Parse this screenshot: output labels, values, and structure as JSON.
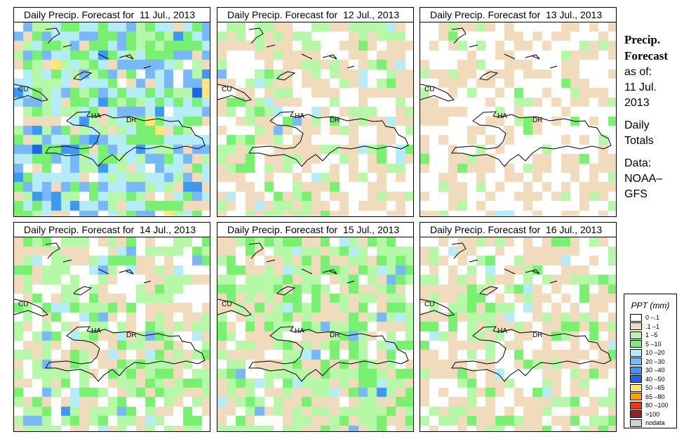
{
  "panels": [
    {
      "title": "Daily Precip. Forecast for  11 Jul., 2013"
    },
    {
      "title": "Daily Precip. Forecast for  12 Jul., 2013"
    },
    {
      "title": "Daily Precip. Forecast for  13 Jul., 2013"
    },
    {
      "title": "Daily Precip. Forecast for  14 Jul., 2013"
    },
    {
      "title": "Daily Precip. Forecast for  15 Jul., 2013"
    },
    {
      "title": "Daily Precip. Forecast for  16 Jul., 2013"
    }
  ],
  "map_labels": {
    "cuba": "CU",
    "haiti": "HA",
    "dr": "DR"
  },
  "side": {
    "title1": "Precip.",
    "title2": "Forecast",
    "asof": "as of:",
    "date1": "11 Jul.",
    "date2": "2013",
    "daily": "Daily",
    "totals": "Totals",
    "data": "Data:",
    "src1": "NOAA–",
    "src2": "GFS"
  },
  "legend": {
    "title": "PPT (mm)",
    "items": [
      {
        "label": "0 –.1",
        "color": "#ffffff"
      },
      {
        "label": ".1 –1",
        "color": "#f0dcbc"
      },
      {
        "label": "1 –5",
        "color": "#b4f8a8"
      },
      {
        "label": "5 –10",
        "color": "#78f070"
      },
      {
        "label": "10 –20",
        "color": "#b4ecf8"
      },
      {
        "label": "20 –30",
        "color": "#78b8f8"
      },
      {
        "label": "30 –40",
        "color": "#3c98f0"
      },
      {
        "label": "40 –50",
        "color": "#1e64e6"
      },
      {
        "label": "50 –65",
        "color": "#ffe678"
      },
      {
        "label": "65 –80",
        "color": "#ffa000"
      },
      {
        "label": "80 –100",
        "color": "#ff3200"
      },
      {
        "label": ">100",
        "color": "#a01e1e"
      },
      {
        "label": "nodata",
        "color": "#d2d2d2"
      }
    ]
  }
}
